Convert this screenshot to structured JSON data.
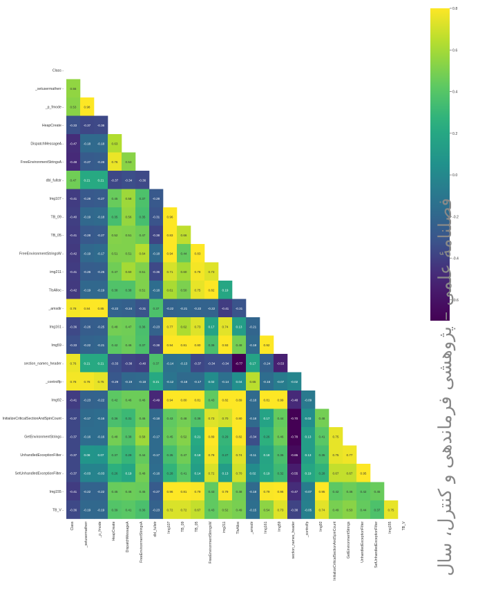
{
  "chart_data": {
    "type": "heatmap",
    "title": "",
    "xlabel": "",
    "ylabel": "",
    "colormap": "viridis",
    "mask": "upper-triangle-including-diagonal",
    "labels": [
      "Class",
      "_setusermatherr",
      "_p_fmode",
      "HeapCreate",
      "DispatchMessageA",
      "FreeEnvironmentStringsA",
      "dbl_fullstr",
      "Img107",
      "TB_09",
      "TB_05",
      "FreeEnvironmentStringsW",
      "img211",
      "TlsAlloc",
      "_amsdir",
      "Img161",
      "Img59",
      "section_names_header",
      "_controlfp",
      "Img92",
      "InitializeCriticalSectionAndSpinCount",
      "GetEnvironmentStrings",
      "UnhandledExceptionFilter",
      "SetUnhandledExceptionFilter",
      "Img155",
      "TB_V"
    ],
    "matrix": [
      [],
      [
        0.55
      ],
      [
        0.53,
        0.98
      ],
      [
        -0.33,
        -0.37,
        -0.36
      ],
      [
        -0.47,
        -0.18,
        -0.18,
        0.63
      ],
      [
        -0.48,
        -0.27,
        -0.26,
        0.76,
        0.53
      ],
      [
        0.47,
        0.21,
        0.21,
        -0.37,
        -0.34,
        -0.36
      ],
      [
        -0.41,
        -0.28,
        -0.27,
        0.45,
        0.58,
        0.37,
        -0.28
      ],
      [
        -0.4,
        -0.19,
        -0.18,
        0.35,
        0.56,
        0.35,
        -0.31,
        0.96
      ],
      [
        -0.41,
        -0.28,
        -0.27,
        0.52,
        0.51,
        0.47,
        -0.38,
        0.83,
        0.66
      ],
      [
        -0.42,
        -0.19,
        -0.17,
        0.51,
        0.51,
        0.64,
        -0.18,
        0.94,
        0.44,
        0.83
      ],
      [
        -0.41,
        -0.26,
        -0.25,
        0.47,
        0.6,
        0.51,
        -0.36,
        0.71,
        0.6,
        0.78,
        0.73
      ],
      [
        -0.42,
        -0.19,
        -0.19,
        0.38,
        0.38,
        0.51,
        -0.16,
        0.61,
        0.5,
        0.75,
        0.82,
        0.19
      ],
      [
        0.78,
        0.84,
        0.85,
        -0.22,
        -0.24,
        -0.31,
        0.37,
        -0.22,
        -0.21,
        -0.22,
        -0.22,
        -0.41,
        -0.31
      ],
      [
        -0.36,
        -0.26,
        -0.25,
        0.48,
        0.47,
        0.36,
        -0.23,
        0.77,
        0.62,
        0.73,
        0.17,
        0.74,
        0.13,
        -0.21
      ],
      [
        -0.33,
        -0.22,
        -0.21,
        0.42,
        0.46,
        0.37,
        -0.38,
        0.94,
        0.81,
        0.8,
        0.36,
        0.93,
        0.48,
        -0.18,
        0.92
      ],
      [
        0.76,
        0.21,
        0.21,
        -0.33,
        -0.38,
        -0.4,
        0.37,
        -0.14,
        -0.13,
        -0.37,
        -0.34,
        -0.34,
        -0.77,
        0.17,
        -0.24,
        -0.53
      ],
      [
        0.78,
        0.78,
        0.75,
        -0.29,
        -0.19,
        -0.18,
        0.21,
        -0.12,
        -0.18,
        -0.17,
        0.02,
        -0.14,
        0.04,
        0.65,
        -0.16,
        -0.07,
        -0.02
      ],
      [
        -0.41,
        -0.23,
        -0.22,
        0.42,
        0.46,
        0.46,
        -0.49,
        0.94,
        0.8,
        0.81,
        0.43,
        0.82,
        0.89,
        -0.18,
        0.81,
        0.99,
        -0.48,
        -0.09
      ],
      [
        -0.37,
        -0.17,
        -0.16,
        0.36,
        0.31,
        0.46,
        -0.18,
        0.43,
        0.48,
        0.38,
        0.73,
        0.7,
        0.8,
        -0.18,
        0.17,
        0.44,
        -0.7,
        0.03,
        0.48
      ],
      [
        -0.37,
        -0.16,
        -0.16,
        0.48,
        0.38,
        0.58,
        -0.17,
        0.45,
        0.52,
        0.21,
        0.89,
        0.29,
        0.82,
        -0.34,
        0.26,
        0.46,
        -0.78,
        0.13,
        0.41,
        0.75
      ],
      [
        -0.37,
        0.08,
        0.07,
        0.37,
        0.29,
        0.44,
        -0.17,
        0.35,
        0.47,
        0.18,
        0.78,
        0.27,
        0.74,
        -0.11,
        0.18,
        0.36,
        -0.65,
        0.13,
        0.35,
        0.75,
        0.77
      ],
      [
        -0.37,
        -0.03,
        -0.03,
        0.26,
        0.19,
        0.48,
        -0.16,
        0.28,
        0.41,
        0.14,
        0.72,
        0.13,
        0.7,
        0.02,
        0.19,
        0.32,
        -0.55,
        0.19,
        0.28,
        0.67,
        0.67,
        0.95
      ],
      [
        -0.41,
        -0.22,
        -0.22,
        0.45,
        0.46,
        0.45,
        -0.27,
        0.96,
        0.81,
        0.79,
        0.43,
        0.79,
        0.48,
        -0.18,
        0.79,
        0.96,
        -0.47,
        -0.07,
        0.95,
        0.42,
        0.46,
        0.42,
        0.45
      ],
      [
        -0.36,
        -0.19,
        -0.19,
        0.39,
        0.41,
        0.36,
        -0.23,
        0.72,
        0.72,
        0.67,
        0.43,
        0.52,
        0.49,
        -0.15,
        0.54,
        0.73,
        -0.38,
        -0.05,
        0.74,
        0.49,
        0.53,
        0.44,
        0.37,
        0.75
      ]
    ],
    "colorbar": {
      "range": [
        -0.7,
        0.8
      ],
      "ticks": [
        0.8,
        0.6,
        0.4,
        0.2,
        0.0,
        -0.2,
        -0.4,
        -0.6
      ]
    }
  },
  "side_caption": "فصلنامهٔ علمی – پژوهشی فرماندهی و کنترل، سال"
}
